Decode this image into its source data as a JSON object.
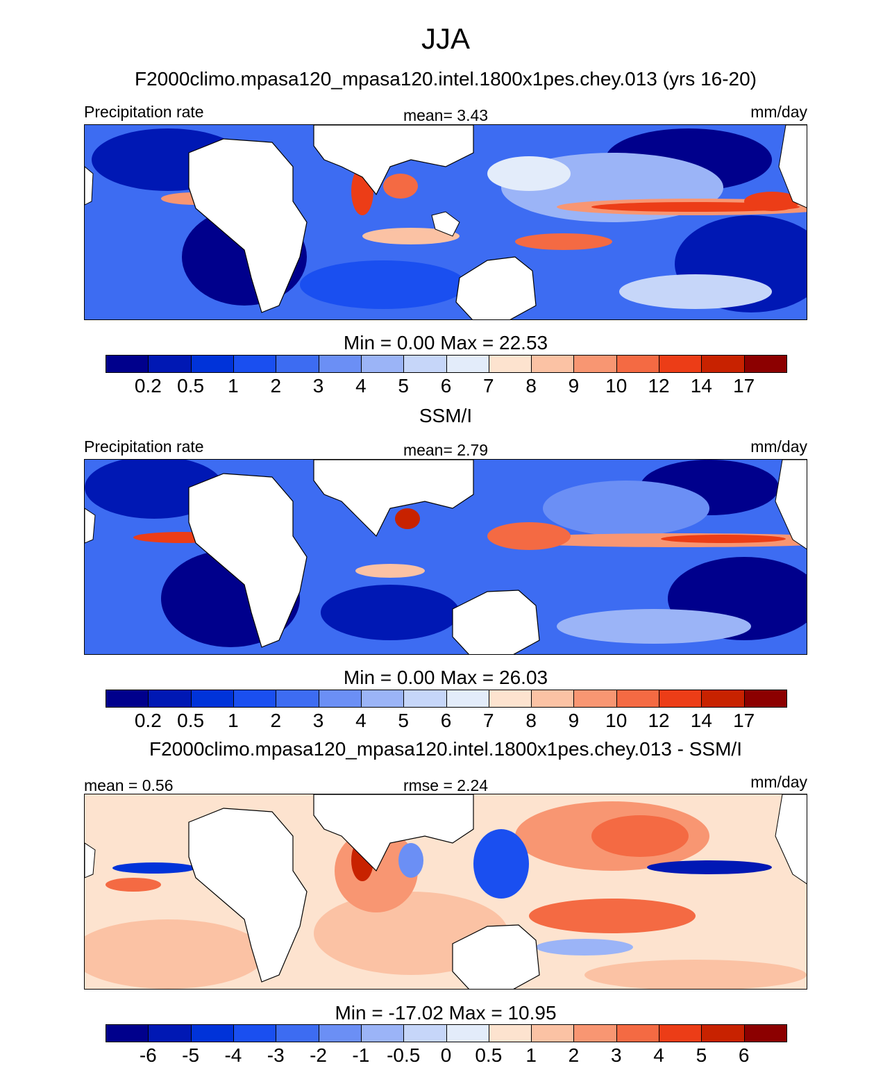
{
  "figure": {
    "season": "JJA"
  },
  "panels": [
    {
      "title": "F2000climo.mpasa120_mpasa120.intel.1800x1pes.chey.013 (yrs 16-20)",
      "left_label": "Precipitation rate",
      "center_label": "mean=   3.43",
      "right_label": "mm/day",
      "minmax": "Min =   0.00 Max =  22.53",
      "kind": "abs"
    },
    {
      "title": "SSM/I",
      "left_label": "Precipitation rate",
      "center_label": "mean=   2.79",
      "right_label": "mm/day",
      "minmax": "Min =   0.00 Max =  26.03",
      "kind": "abs"
    },
    {
      "title": "F2000climo.mpasa120_mpasa120.intel.1800x1pes.chey.013 - SSM/I",
      "left_label": "mean =   0.56",
      "center_label": "rmse =   2.24",
      "right_label": "mm/day",
      "minmax": "Min = -17.02 Max =  10.95",
      "kind": "diff"
    }
  ],
  "colorbars": {
    "abs": {
      "levels": [
        "0.2",
        "0.5",
        "1",
        "2",
        "3",
        "4",
        "5",
        "6",
        "7",
        "8",
        "9",
        "10",
        "12",
        "14",
        "17"
      ],
      "colors": [
        "#00008c",
        "#0018b4",
        "#0033d9",
        "#1a4ff0",
        "#3d6cf2",
        "#6b8ff5",
        "#9bb4f7",
        "#c6d6f9",
        "#e3ecfa",
        "#fde3cf",
        "#fbc2a4",
        "#f89672",
        "#f46a43",
        "#ec3d17",
        "#c82200",
        "#8c0000"
      ]
    },
    "diff": {
      "levels": [
        "-6",
        "-5",
        "-4",
        "-3",
        "-2",
        "-1",
        "-0.5",
        "0",
        "0.5",
        "1",
        "2",
        "3",
        "4",
        "5",
        "6"
      ],
      "colors": [
        "#00008c",
        "#0018b4",
        "#0033d9",
        "#1a4ff0",
        "#3d6cf2",
        "#6b8ff5",
        "#9bb4f7",
        "#c6d6f9",
        "#e3ecfa",
        "#fde3cf",
        "#fbc2a4",
        "#f89672",
        "#f46a43",
        "#ec3d17",
        "#c82200",
        "#8c0000"
      ]
    }
  },
  "colors": {
    "ocean_dry": "#1a4ff0",
    "ocean_mid": "#9bb4f7",
    "ocean_wet": "#ec3d17",
    "land": "#ffffff",
    "coast": "#000000"
  }
}
